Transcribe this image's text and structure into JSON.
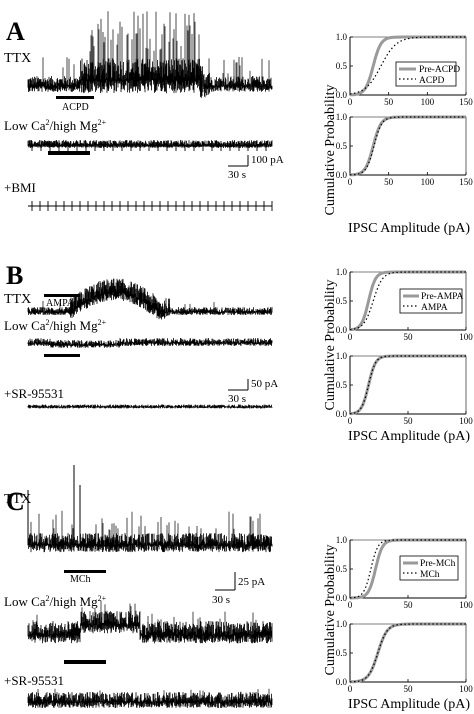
{
  "panels": [
    {
      "letter": "A",
      "traces": {
        "ttx_label": "TTX",
        "bar_label": "ACPD",
        "lowca_label": "Low Ca",
        "lowca_sup": "2",
        "lowca_mid": "/high Mg",
        "lowca_sup2": "2+",
        "drug_label": "+BMI",
        "scale_amp": "100 pA",
        "scale_time": "30 s"
      },
      "cdf": {
        "ylabel": "Cumulative Probability",
        "xlabel": "IPSC Amplitude (pA)",
        "yticks": [
          "0.0",
          "0.5",
          "1.0"
        ],
        "xticks": [
          "0",
          "50",
          "100",
          "150"
        ],
        "legend": [
          "Pre-ACPD",
          "ACPD"
        ]
      }
    },
    {
      "letter": "B",
      "traces": {
        "ttx_label": "TTX",
        "bar_label": "AMPA",
        "lowca_label": "Low Ca",
        "lowca_sup": "2",
        "lowca_mid": "/high Mg",
        "lowca_sup2": "2+",
        "drug_label": "+SR-95531",
        "scale_amp": "50 pA",
        "scale_time": "30 s"
      },
      "cdf": {
        "ylabel": "Cumulative Probability",
        "xlabel": "IPSC Amplitude (pA)",
        "yticks": [
          "0.0",
          "0.5",
          "1.0"
        ],
        "xticks": [
          "0",
          "50",
          "100"
        ],
        "legend": [
          "Pre-AMPA",
          "AMPA"
        ]
      }
    },
    {
      "letter": "C",
      "traces": {
        "ttx_label": "TTX",
        "bar_label": "MCh",
        "lowca_label": "Low Ca",
        "lowca_sup": "2",
        "lowca_mid": "/high Mg",
        "lowca_sup2": "2+",
        "drug_label": "+SR-95531",
        "scale_amp": "25 pA",
        "scale_time": "30 s"
      },
      "cdf": {
        "ylabel": "Cumulative Probability",
        "xlabel": "IPSC Amplitude (pA)",
        "yticks": [
          "0.0",
          "0.5",
          "1.0"
        ],
        "xticks": [
          "0",
          "50",
          "100"
        ],
        "legend": [
          "Pre-MCh",
          "MCh"
        ]
      }
    }
  ],
  "colors": {
    "ink": "#000000",
    "pre_curve": "#9a9a9a"
  }
}
